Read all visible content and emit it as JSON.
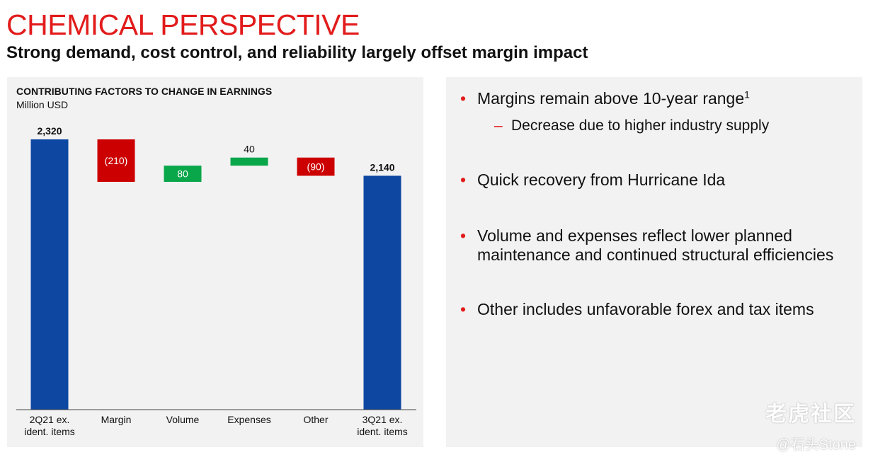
{
  "header": {
    "title": "CHEMICAL PERSPECTIVE",
    "subtitle": "Strong demand, cost control, and reliability largely offset margin impact"
  },
  "colors": {
    "accent": "#e21b1b",
    "total": "#0d47a1",
    "increase": "#0aa64a",
    "decrease": "#cc0000"
  },
  "chart_data": {
    "type": "waterfall",
    "title": "CONTRIBUTING FACTORS TO CHANGE IN EARNINGS",
    "ylabel": "Million USD",
    "categories": [
      "2Q21 ex.\nident. items",
      "Margin",
      "Volume",
      "Expenses",
      "Other",
      "3Q21 ex.\nident. items"
    ],
    "steps": [
      {
        "name": "2Q21 ex. ident. items",
        "kind": "total",
        "value": 2320,
        "label": "2,320"
      },
      {
        "name": "Margin",
        "kind": "delta",
        "value": -210,
        "label": "(210)"
      },
      {
        "name": "Volume",
        "kind": "delta",
        "value": 80,
        "label": "80"
      },
      {
        "name": "Expenses",
        "kind": "delta",
        "value": 40,
        "label": "40"
      },
      {
        "name": "Other",
        "kind": "delta",
        "value": -90,
        "label": "(90)"
      },
      {
        "name": "3Q21 ex. ident. items",
        "kind": "total",
        "value": 2140,
        "label": "2,140"
      }
    ],
    "ylim": [
      0,
      2320
    ]
  },
  "notes": {
    "bullet1": "Margins remain above 10-year range",
    "bullet1_sup": "1",
    "bullet1_sub": "Decrease due to higher industry supply",
    "bullet2": "Quick recovery from Hurricane Ida",
    "bullet3": "Volume and expenses reflect lower planned maintenance and continued structural efficiencies",
    "bullet4": "Other includes unfavorable forex and tax items"
  },
  "watermark": {
    "logo_text": "老虎社区",
    "user_text": "@石头Stone"
  }
}
